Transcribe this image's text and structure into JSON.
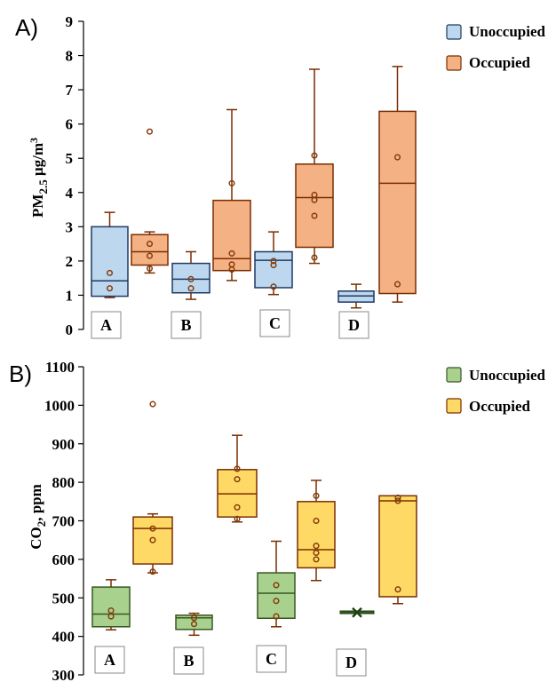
{
  "chart_data": [
    {
      "type": "box",
      "panel_label": "A)",
      "ylabel": "PM2.5 μg/m3",
      "ylabel_parts": {
        "main": "PM",
        "sub": "2.5",
        "unit": " μg/m",
        "sup": "3"
      },
      "ylim": [
        0,
        9
      ],
      "yticks": [
        0,
        1,
        2,
        3,
        4,
        5,
        6,
        7,
        8,
        9
      ],
      "grid": false,
      "legend_position": "top-right",
      "legend": [
        {
          "label": "Unoccupied",
          "color": "#bdd7ee"
        },
        {
          "label": "Occupied",
          "color": "#f4b183"
        }
      ],
      "sites": [
        "A",
        "B",
        "C",
        "D"
      ],
      "boxes": [
        {
          "site": "A",
          "group": "Unoccupied",
          "min": 0.93,
          "q1": 0.97,
          "median": 1.42,
          "q3": 3.0,
          "max": 3.42,
          "points": [
            1.65,
            1.2
          ]
        },
        {
          "site": "A",
          "group": "Occupied",
          "min": 1.65,
          "q1": 1.88,
          "median": 2.27,
          "q3": 2.77,
          "max": 2.85,
          "points": [
            5.78,
            2.5,
            2.15,
            1.78
          ]
        },
        {
          "site": "B",
          "group": "Unoccupied",
          "min": 0.88,
          "q1": 1.07,
          "median": 1.47,
          "q3": 1.93,
          "max": 2.27,
          "points": [
            1.47,
            1.2
          ]
        },
        {
          "site": "B",
          "group": "Occupied",
          "min": 1.43,
          "q1": 1.72,
          "median": 2.07,
          "q3": 3.77,
          "max": 6.42,
          "points": [
            4.27,
            2.22,
            1.9,
            1.75
          ]
        },
        {
          "site": "C",
          "group": "Unoccupied",
          "min": 1.02,
          "q1": 1.22,
          "median": 2.02,
          "q3": 2.27,
          "max": 2.85,
          "points": [
            2.0,
            1.88,
            1.25
          ]
        },
        {
          "site": "C",
          "group": "Occupied",
          "min": 1.93,
          "q1": 2.4,
          "median": 3.85,
          "q3": 4.83,
          "max": 7.6,
          "points": [
            5.08,
            3.93,
            3.78,
            3.32,
            2.1
          ]
        },
        {
          "site": "D",
          "group": "Unoccupied",
          "min": 0.63,
          "q1": 0.8,
          "median": 0.98,
          "q3": 1.12,
          "max": 1.32,
          "points": []
        },
        {
          "site": "D",
          "group": "Occupied",
          "min": 0.8,
          "q1": 1.05,
          "median": 4.27,
          "q3": 6.37,
          "max": 7.68,
          "points": [
            5.03,
            1.32
          ]
        }
      ]
    },
    {
      "type": "box",
      "panel_label": "B)",
      "ylabel": "CO2, ppm",
      "ylabel_parts": {
        "main": "CO",
        "sub": "2",
        "unit": ", ppm",
        "sup": ""
      },
      "ylim": [
        300,
        1100
      ],
      "yticks": [
        300,
        400,
        500,
        600,
        700,
        800,
        900,
        1000,
        1100
      ],
      "grid": false,
      "legend_position": "top-right",
      "legend": [
        {
          "label": "Unoccupied",
          "color": "#a9d18e"
        },
        {
          "label": "Occupied",
          "color": "#ffd966"
        }
      ],
      "sites": [
        "A",
        "B",
        "C",
        "D"
      ],
      "boxes": [
        {
          "site": "A",
          "group": "Unoccupied",
          "min": 417,
          "q1": 425,
          "median": 458,
          "q3": 528,
          "max": 547,
          "points": [
            467,
            452
          ]
        },
        {
          "site": "A",
          "group": "Occupied",
          "min": 565,
          "q1": 588,
          "median": 680,
          "q3": 710,
          "max": 718,
          "points": [
            1003,
            680,
            650,
            568
          ]
        },
        {
          "site": "B",
          "group": "Unoccupied",
          "min": 403,
          "q1": 418,
          "median": 448,
          "q3": 455,
          "max": 460,
          "points": [
            448,
            432
          ]
        },
        {
          "site": "B",
          "group": "Occupied",
          "min": 697,
          "q1": 710,
          "median": 770,
          "q3": 833,
          "max": 922,
          "points": [
            835,
            808,
            735,
            705
          ]
        },
        {
          "site": "C",
          "group": "Unoccupied",
          "min": 425,
          "q1": 447,
          "median": 512,
          "q3": 565,
          "max": 647,
          "points": [
            533,
            492,
            452
          ]
        },
        {
          "site": "C",
          "group": "Occupied",
          "min": 545,
          "q1": 578,
          "median": 625,
          "q3": 750,
          "max": 805,
          "points": [
            765,
            700,
            635,
            617,
            600
          ]
        },
        {
          "site": "D",
          "group": "Unoccupied",
          "min": 460,
          "q1": 460,
          "median": 462,
          "q3": 466,
          "max": 466,
          "points": []
        },
        {
          "site": "D",
          "group": "Occupied",
          "min": 485,
          "q1": 503,
          "median": 752,
          "q3": 765,
          "max": 765,
          "points": [
            760,
            752,
            522
          ]
        }
      ]
    }
  ]
}
